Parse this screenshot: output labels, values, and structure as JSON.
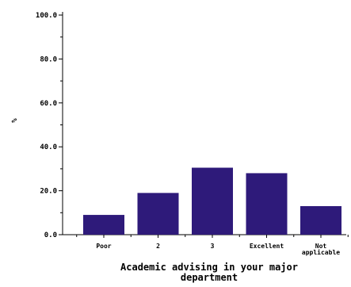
{
  "chart_data": {
    "type": "bar",
    "categories": [
      "Poor",
      "2",
      "3",
      "Excellent",
      "Not applicable"
    ],
    "category_lines": [
      [
        "Poor"
      ],
      [
        "2"
      ],
      [
        "3"
      ],
      [
        "Excellent"
      ],
      [
        "Not",
        "applicable"
      ]
    ],
    "values": [
      9.0,
      19.0,
      30.5,
      28.0,
      13.0
    ],
    "ylabel": "%",
    "xlabel": "Academic advising in your major department",
    "xlabel_lines": [
      "Academic advising in your major",
      "department"
    ],
    "ylim": [
      0,
      100
    ],
    "yticks": [
      0,
      20,
      40,
      60,
      80,
      100
    ],
    "ytick_labels": [
      "0.0",
      "20.0",
      "40.0",
      "60.0",
      "80.0",
      "100.0"
    ],
    "minor_ticks_per_interval": 2,
    "bar_color": "#2e1a7a",
    "grid": false
  }
}
